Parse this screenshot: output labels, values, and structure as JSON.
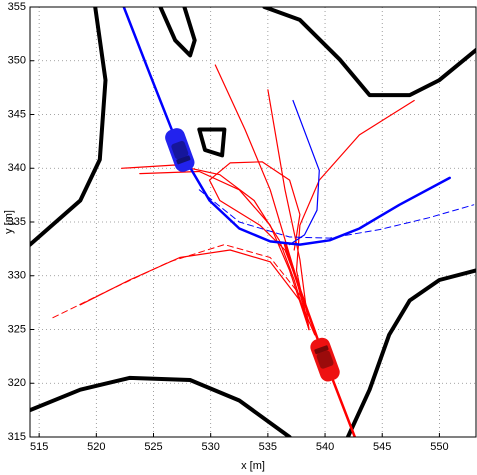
{
  "chart_data": {
    "type": "line",
    "xlabel": "x [m]",
    "ylabel": "y [m]",
    "xlim": [
      514.2,
      553.2
    ],
    "ylim": [
      315,
      355
    ],
    "xticks": [
      515,
      520,
      525,
      530,
      535,
      540,
      545,
      550
    ],
    "yticks": [
      315,
      320,
      325,
      330,
      335,
      340,
      345,
      350,
      355
    ],
    "grid": true,
    "series": [
      {
        "color": "#000000",
        "linewidth": 4,
        "dash": false,
        "x": [
          519.9,
          520.8,
          520.3,
          518.6,
          514.2
        ],
        "values": [
          355,
          348.2,
          340.8,
          337.0,
          332.9
        ]
      },
      {
        "color": "#000000",
        "linewidth": 4,
        "dash": false,
        "x": [
          525.6,
          526.9,
          528.2,
          528.6,
          527.7
        ],
        "values": [
          355,
          351.9,
          350.5,
          351.9,
          355
        ]
      },
      {
        "color": "#000000",
        "linewidth": 4,
        "dash": false,
        "x": [
          534.7,
          537.8,
          541.3,
          543.9,
          547.4,
          550.0,
          553.2
        ],
        "values": [
          355,
          353.8,
          350.1,
          346.8,
          346.8,
          348.2,
          351.0
        ]
      },
      {
        "color": "#000000",
        "linewidth": 4,
        "dash": false,
        "x": [
          529.0,
          531.2,
          531.0,
          529.5,
          529.0
        ],
        "values": [
          343.6,
          343.6,
          341.2,
          341.7,
          343.6
        ]
      },
      {
        "color": "#000000",
        "linewidth": 4,
        "dash": false,
        "x": [
          542.0,
          543.9,
          545.6,
          547.4,
          550.0,
          553.2
        ],
        "values": [
          315,
          319.4,
          324.5,
          327.7,
          329.6,
          330.5
        ]
      },
      {
        "color": "#000000",
        "linewidth": 4,
        "dash": false,
        "x": [
          514.2,
          518.6,
          522.9,
          528.2,
          532.5,
          536.9
        ],
        "values": [
          317.5,
          319.4,
          320.5,
          320.3,
          318.4,
          315
        ]
      },
      {
        "color": "#ff0000",
        "linewidth": 1.2,
        "dash": false,
        "x": [
          538.6,
          537.3,
          536.0,
          533.8,
          530.8,
          526.9,
          522.2
        ],
        "values": [
          325.0,
          329.6,
          333.3,
          337.0,
          339.4,
          340.3,
          340.0
        ]
      },
      {
        "color": "#ff0000",
        "linewidth": 1.2,
        "dash": false,
        "x": [
          538.6,
          536.9,
          535.2,
          532.5,
          529.0,
          523.8
        ],
        "values": [
          325.0,
          330.5,
          334.7,
          338.0,
          339.7,
          339.5
        ]
      },
      {
        "color": "#ff0000",
        "linewidth": 1.2,
        "dash": false,
        "x": [
          538.6,
          537.5,
          537.8,
          539.5,
          543.0,
          547.8
        ],
        "values": [
          325.0,
          330.5,
          334.7,
          338.9,
          343.1,
          346.3
        ]
      },
      {
        "color": "#ff0000",
        "linewidth": 1.2,
        "dash": false,
        "x": [
          538.6,
          537.3,
          535.2,
          533.0,
          530.4
        ],
        "values": [
          325.0,
          330.5,
          338.0,
          343.6,
          349.6
        ]
      },
      {
        "color": "#ff0000",
        "linewidth": 1.2,
        "dash": false,
        "x": [
          538.6,
          537.8,
          536.5,
          535.0
        ],
        "values": [
          325.0,
          331.5,
          338.0,
          347.3
        ]
      },
      {
        "color": "#ff0000",
        "linewidth": 1.2,
        "dash": false,
        "x": [
          538.2,
          536.5,
          534.3,
          530.8,
          529.9,
          531.7,
          534.5,
          536.9,
          537.8,
          537.3
        ],
        "values": [
          327.7,
          332.4,
          334.7,
          337.0,
          338.9,
          340.5,
          340.6,
          338.9,
          335.7,
          332.4
        ]
      },
      {
        "color": "#ff0000",
        "linewidth": 1.2,
        "dash": false,
        "x": [
          518.6,
          522.9,
          527.3,
          531.7,
          535.2,
          537.8,
          539.1
        ],
        "values": [
          327.3,
          329.6,
          331.7,
          332.4,
          331.3,
          327.7,
          324.5
        ]
      },
      {
        "color": "#ff0000",
        "linewidth": 1,
        "dash": true,
        "x": [
          516.2,
          521.2,
          526.4,
          531.2,
          535.2,
          538.2
        ],
        "values": [
          326.1,
          328.7,
          331.3,
          332.9,
          331.7,
          327.7
        ]
      },
      {
        "color": "#ff0000",
        "linewidth": 2.5,
        "dash": false,
        "x": [
          542.6,
          540.0,
          537.8,
          536.5
        ],
        "values": [
          315,
          322.2,
          328.7,
          332.9
        ]
      },
      {
        "color": "#0000ff",
        "linewidth": 1.2,
        "dash": false,
        "x": [
          537.2,
          539.5,
          539.3,
          538.2,
          536.9
        ],
        "values": [
          346.3,
          339.8,
          336.1,
          333.8,
          332.9
        ]
      },
      {
        "color": "#0000ff",
        "linewidth": 1,
        "dash": true,
        "x": [
          529.0,
          532.5,
          536.9,
          540.4,
          544.8,
          549.1,
          553.0
        ],
        "values": [
          338.0,
          335.0,
          333.6,
          333.5,
          334.3,
          335.4,
          336.6
        ]
      },
      {
        "color": "#0000ff",
        "linewidth": 2.5,
        "dash": false,
        "x": [
          522.4,
          524.7,
          527.3,
          529.9,
          532.5,
          535.2,
          537.8,
          540.4,
          543.0,
          546.5,
          550.9
        ],
        "values": [
          355,
          348.7,
          341.7,
          337.0,
          334.4,
          333.2,
          332.9,
          333.3,
          334.4,
          336.6,
          339.1
        ]
      }
    ],
    "vehicles": [
      {
        "color": "#2222ee",
        "x": 527.3,
        "y": 341.7,
        "heading": 70
      },
      {
        "color": "#ee1111",
        "x": 540.0,
        "y": 322.2,
        "heading": 250
      }
    ]
  }
}
